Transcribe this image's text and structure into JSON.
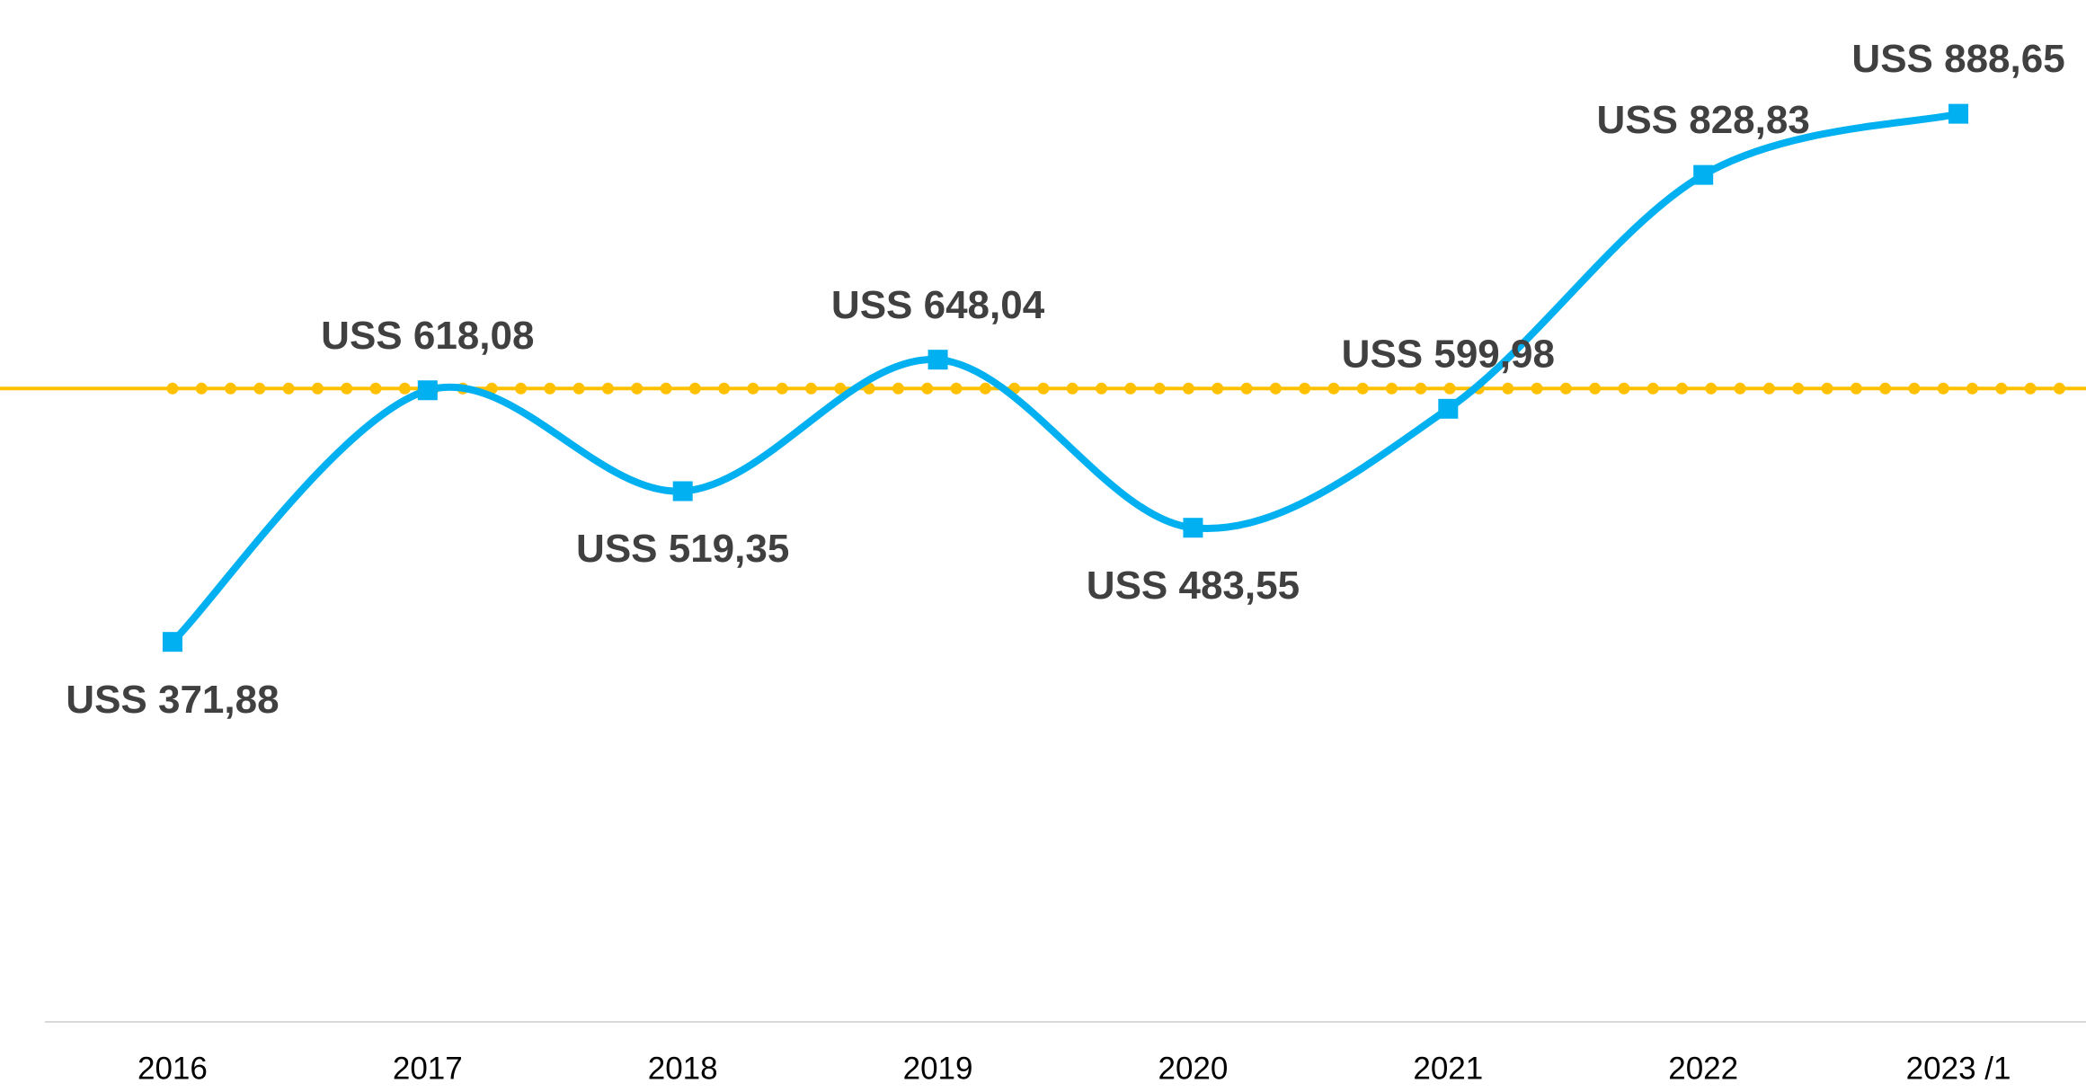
{
  "chart_data": {
    "type": "line",
    "categories": [
      "2016",
      "2017",
      "2018",
      "2019",
      "2020",
      "2021",
      "2022",
      "2023 /1"
    ],
    "series": [
      {
        "color": "#00b0f0",
        "values": [
          371.88,
          618.08,
          519.35,
          648.04,
          483.55,
          599.98,
          828.83,
          888.65
        ],
        "value_labels": [
          "USS 371,88",
          "USS 618,08",
          "USS 519,35",
          "USS 648,04",
          "USS 483,55",
          "USS 599,98",
          "USS 828,83",
          "USS 888,65"
        ]
      }
    ],
    "reference_line": {
      "value": 619.8,
      "color": "#ffc000"
    },
    "ylim": [
      0,
      1000
    ]
  }
}
